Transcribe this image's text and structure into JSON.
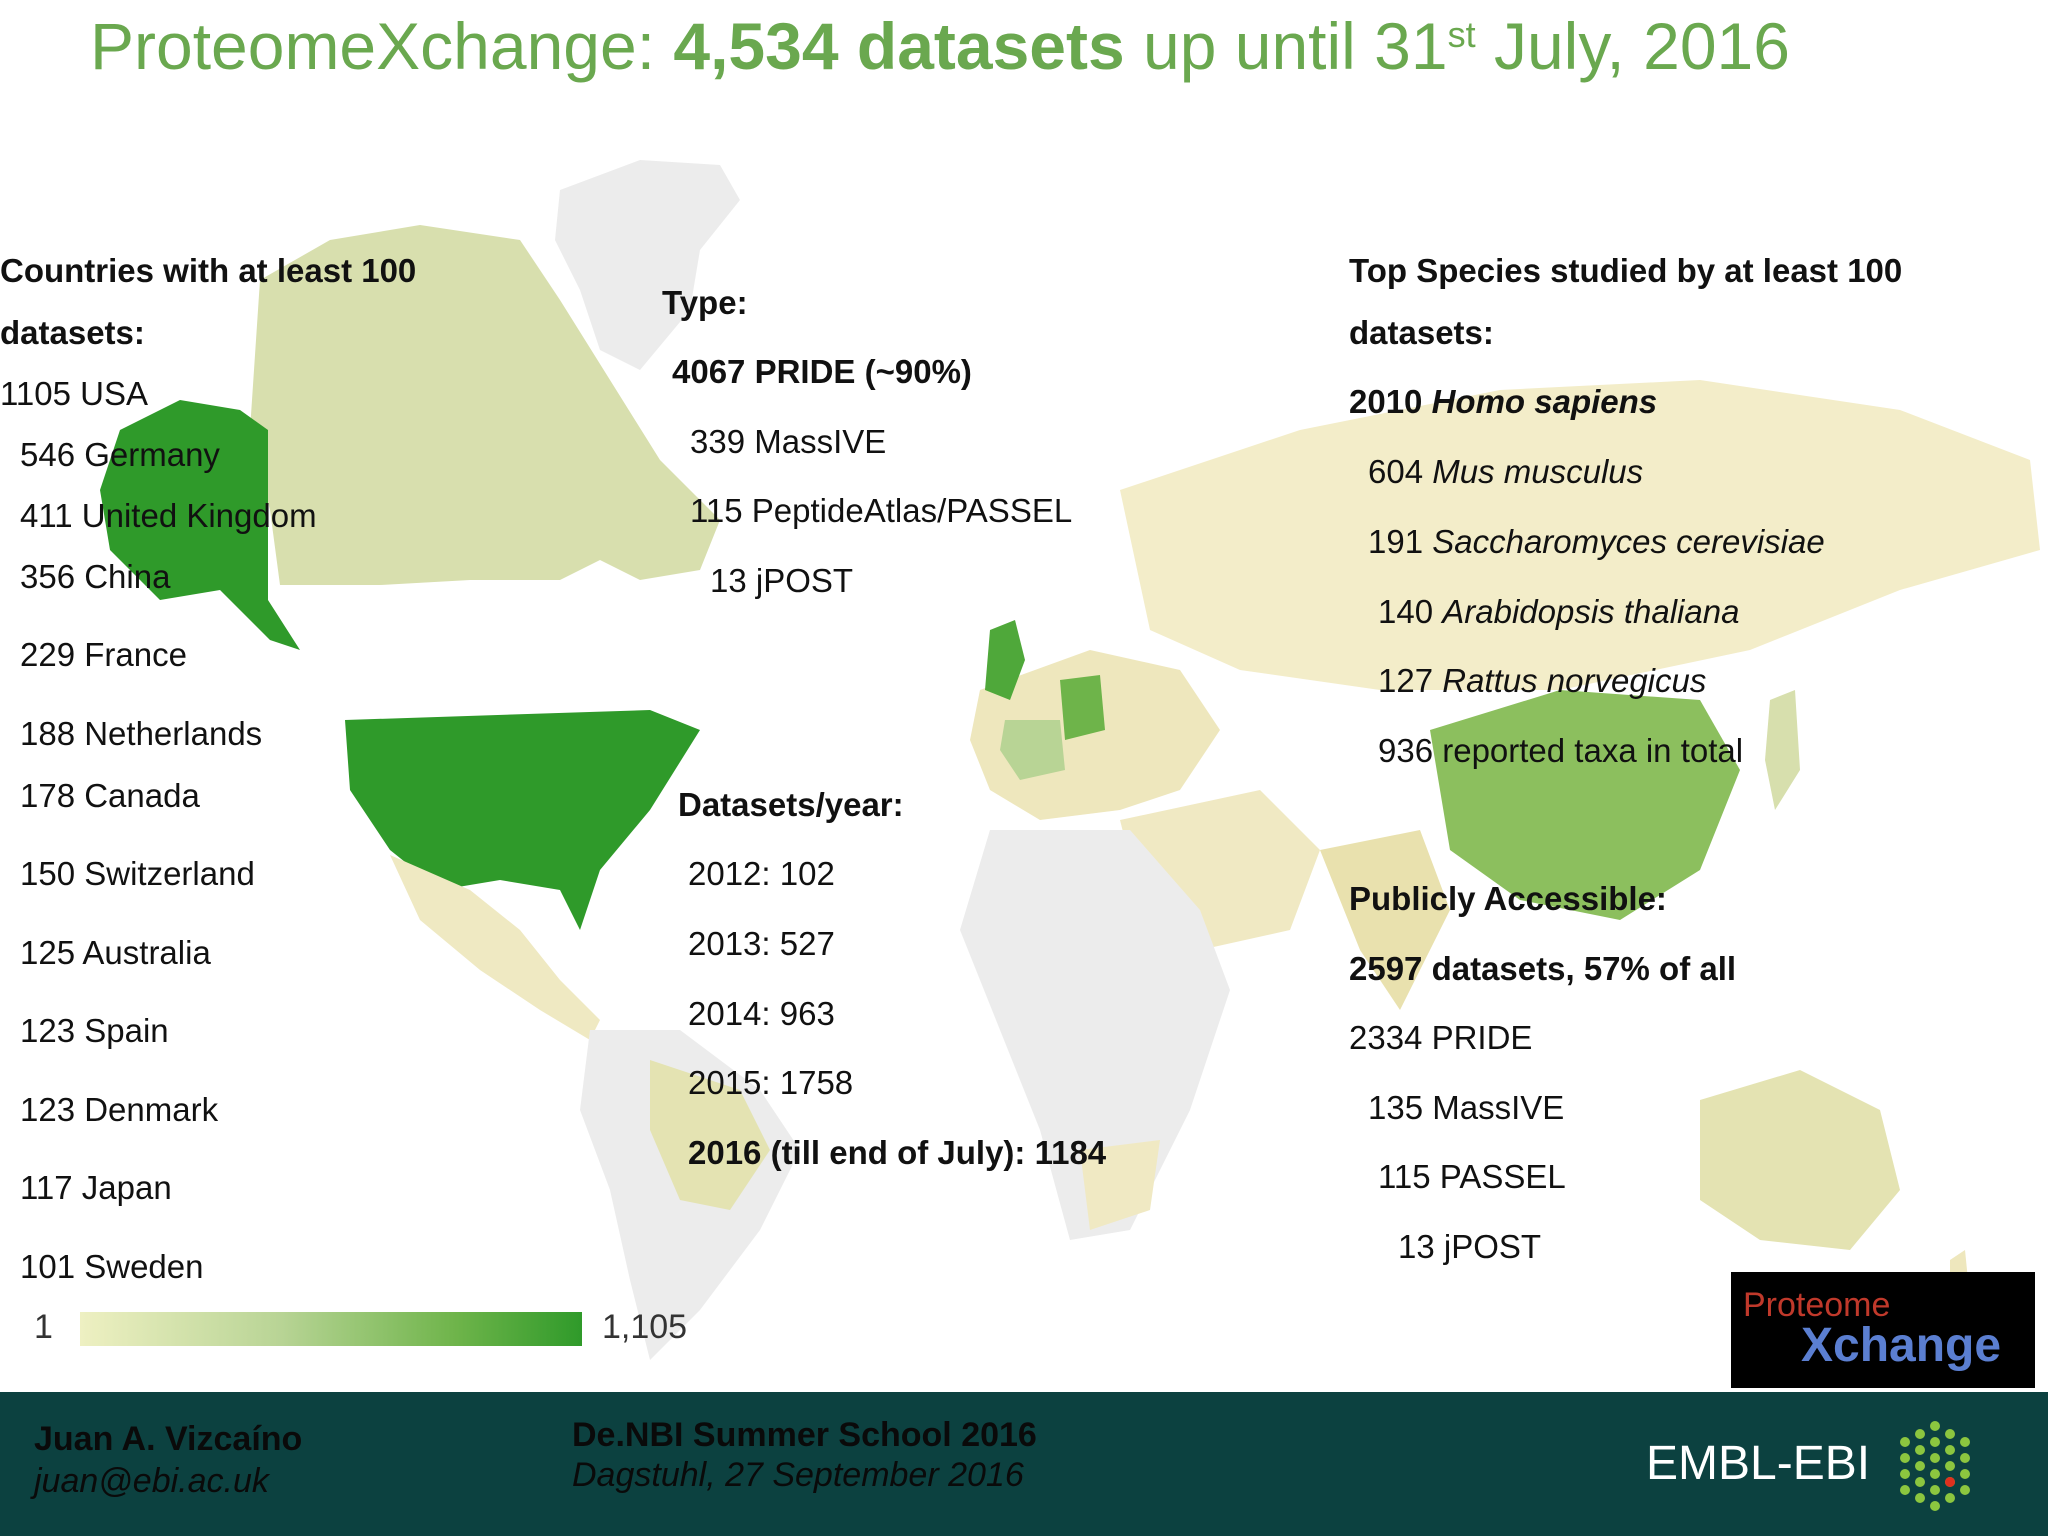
{
  "title": {
    "prefix": "ProteomeXchange: ",
    "bold": "4,534 datasets",
    "middle": " up until 31",
    "sup": "st",
    "suffix": " July, 2016"
  },
  "countries": {
    "heading_line1": "Countries with at least 100",
    "heading_line2": "datasets:",
    "items": [
      "1105 USA",
      "546 Germany",
      "411 United Kingdom",
      "356 China",
      "229 France",
      "188 Netherlands",
      "178 Canada",
      "150 Switzerland",
      "125 Australia",
      "123 Spain",
      "123 Denmark",
      "117 Japan",
      "101 Sweden"
    ]
  },
  "type": {
    "heading": "Type:",
    "items": [
      "4067 PRIDE  (~90%)",
      "339 MassIVE",
      "115 PeptideAtlas/PASSEL",
      "13 jPOST"
    ]
  },
  "per_year": {
    "heading": "Datasets/year:",
    "items": [
      "2012:  102",
      "2013:  527",
      "2014:  963",
      "2015:  1758",
      "2016 (till end of July):  1184"
    ]
  },
  "species": {
    "heading_line1": "Top Species studied by at least 100",
    "heading_line2": "datasets:",
    "items": [
      {
        "count": "2010 ",
        "name": "Homo sapiens"
      },
      {
        "count": "604 ",
        "name": "Mus musculus"
      },
      {
        "count": "191 ",
        "name": "Saccharomyces cerevisiae"
      },
      {
        "count": "140 ",
        "name": "Arabidopsis thaliana"
      },
      {
        "count": "127 ",
        "name": "Rattus norvegicus"
      }
    ],
    "total": "936 reported taxa in total"
  },
  "public": {
    "heading": "Publicly Accessible:",
    "summary": "2597 datasets, 57% of all",
    "items": [
      "2334  PRIDE",
      "135  MassIVE",
      "115 PASSEL",
      "13 jPOST"
    ]
  },
  "legend": {
    "min": "1",
    "max": "1,105"
  },
  "logo": {
    "line1": "Proteome",
    "line2": "Xchange"
  },
  "footer": {
    "author": "Juan A. Vizcaíno",
    "email": "juan@ebi.ac.uk",
    "event": "De.NBI Summer School 2016",
    "place": "Dagstuhl, 27 September 2016",
    "org": "EMBL-EBI"
  },
  "colors": {
    "accent": "#6aa84f",
    "footer_bg": "#0c4140",
    "land_base": "#f4f0d6",
    "land_light": "#d7dfad",
    "land_strong": "#2f9a2a",
    "land_none": "#e6e6e6"
  }
}
